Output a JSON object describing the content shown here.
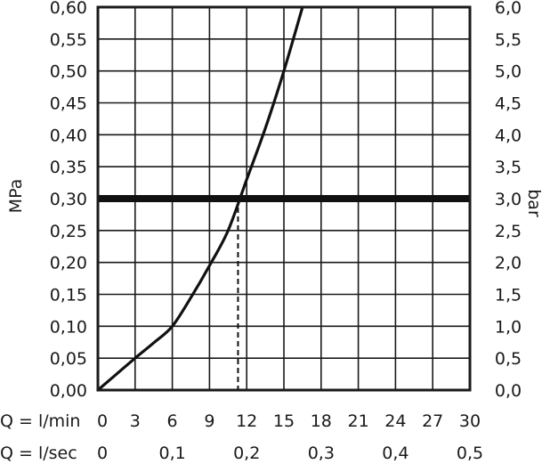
{
  "chart_data": {
    "type": "line",
    "x_label": "Q = l/min",
    "x2_label": "Q = l/sec",
    "y_label": "MPa",
    "y2_label": "bar",
    "xlim": [
      0,
      30
    ],
    "ylim": [
      0,
      0.6
    ],
    "grid": true,
    "x_ticks": [
      "0",
      "3",
      "6",
      "9",
      "12",
      "15",
      "18",
      "21",
      "24",
      "27",
      "30"
    ],
    "x2_ticks": [
      {
        "value": 0,
        "label": "0"
      },
      {
        "value": 6,
        "label": "0,1"
      },
      {
        "value": 12,
        "label": "0,2"
      },
      {
        "value": 18,
        "label": "0,3"
      },
      {
        "value": 24,
        "label": "0,4"
      },
      {
        "value": 30,
        "label": "0,5"
      }
    ],
    "y_ticks": [
      "0,00",
      "0,05",
      "0,10",
      "0,15",
      "0,20",
      "0,25",
      "0,30",
      "0,35",
      "0,40",
      "0,45",
      "0,50",
      "0,55",
      "0,60"
    ],
    "y2_ticks": [
      "0,0",
      "0,5",
      "1,0",
      "1,5",
      "2,0",
      "2,5",
      "3,0",
      "3,5",
      "4,0",
      "4,5",
      "5,0",
      "5,5",
      "6,0"
    ],
    "series": [
      {
        "x": [
          0,
          1.5,
          3,
          4.5,
          6,
          7.5,
          9,
          10.5,
          12,
          13.5,
          15,
          16.5
        ],
        "y": [
          0,
          0.025,
          0.05,
          0.074,
          0.1,
          0.145,
          0.195,
          0.25,
          0.33,
          0.41,
          0.5,
          0.6
        ]
      }
    ],
    "reference_line": {
      "y": 0.3
    },
    "marker": {
      "x": 11.3,
      "y": 0.3
    }
  }
}
